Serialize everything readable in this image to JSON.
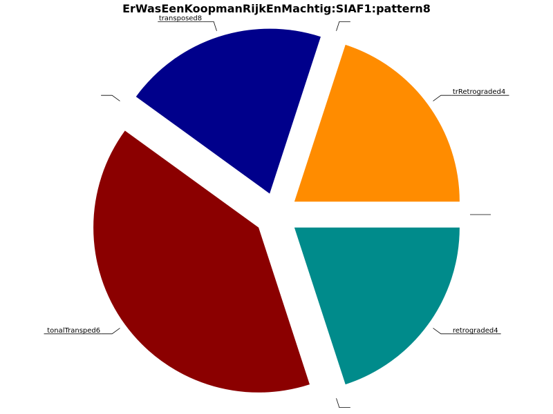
{
  "chart_data": {
    "type": "pie",
    "title": "ErWasEenKoopmanRijkEnMachtig:SIAF1:pattern8",
    "slices": [
      {
        "label": "trRetrograded4",
        "value": 4,
        "color": "#ff8c00"
      },
      {
        "label": "",
        "value": 0,
        "color": "#000000"
      },
      {
        "label": "transposed8",
        "value": 4,
        "color": "#00008b"
      },
      {
        "label": "",
        "value": 0,
        "color": "#000000"
      },
      {
        "label": "tonalTransped6",
        "value": 8,
        "color": "#8b0000"
      },
      {
        "label": "",
        "value": 0,
        "color": "#000000"
      },
      {
        "label": "retrograded4",
        "value": 4,
        "color": "#008b8b"
      },
      {
        "label": "",
        "value": 0,
        "color": "#000000"
      }
    ],
    "start_angle": 0,
    "direction": "counterclockwise",
    "exploded": true,
    "legend": "none"
  }
}
